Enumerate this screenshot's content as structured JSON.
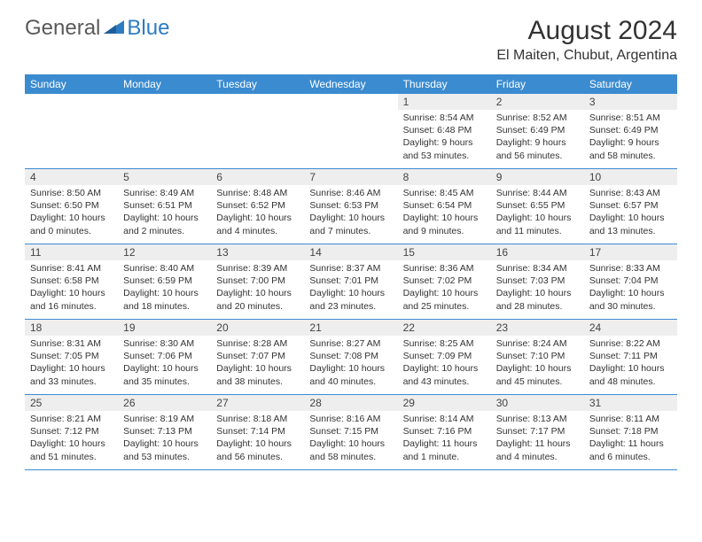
{
  "logo": {
    "general": "General",
    "blue": "Blue"
  },
  "title": "August 2024",
  "location": "El Maiten, Chubut, Argentina",
  "colors": {
    "header_bg": "#3b8bd0",
    "header_fg": "#ffffff",
    "daynum_bg": "#eeeeee",
    "rule": "#3b8bd0",
    "logo_gray": "#5a5a5a",
    "logo_blue": "#2d7cc1"
  },
  "weekdays": [
    "Sunday",
    "Monday",
    "Tuesday",
    "Wednesday",
    "Thursday",
    "Friday",
    "Saturday"
  ],
  "weeks": [
    [
      {
        "empty": true
      },
      {
        "empty": true
      },
      {
        "empty": true
      },
      {
        "empty": true
      },
      {
        "n": "1",
        "sunrise": "8:54 AM",
        "sunset": "6:48 PM",
        "daylight": "9 hours and 53 minutes."
      },
      {
        "n": "2",
        "sunrise": "8:52 AM",
        "sunset": "6:49 PM",
        "daylight": "9 hours and 56 minutes."
      },
      {
        "n": "3",
        "sunrise": "8:51 AM",
        "sunset": "6:49 PM",
        "daylight": "9 hours and 58 minutes."
      }
    ],
    [
      {
        "n": "4",
        "sunrise": "8:50 AM",
        "sunset": "6:50 PM",
        "daylight": "10 hours and 0 minutes."
      },
      {
        "n": "5",
        "sunrise": "8:49 AM",
        "sunset": "6:51 PM",
        "daylight": "10 hours and 2 minutes."
      },
      {
        "n": "6",
        "sunrise": "8:48 AM",
        "sunset": "6:52 PM",
        "daylight": "10 hours and 4 minutes."
      },
      {
        "n": "7",
        "sunrise": "8:46 AM",
        "sunset": "6:53 PM",
        "daylight": "10 hours and 7 minutes."
      },
      {
        "n": "8",
        "sunrise": "8:45 AM",
        "sunset": "6:54 PM",
        "daylight": "10 hours and 9 minutes."
      },
      {
        "n": "9",
        "sunrise": "8:44 AM",
        "sunset": "6:55 PM",
        "daylight": "10 hours and 11 minutes."
      },
      {
        "n": "10",
        "sunrise": "8:43 AM",
        "sunset": "6:57 PM",
        "daylight": "10 hours and 13 minutes."
      }
    ],
    [
      {
        "n": "11",
        "sunrise": "8:41 AM",
        "sunset": "6:58 PM",
        "daylight": "10 hours and 16 minutes."
      },
      {
        "n": "12",
        "sunrise": "8:40 AM",
        "sunset": "6:59 PM",
        "daylight": "10 hours and 18 minutes."
      },
      {
        "n": "13",
        "sunrise": "8:39 AM",
        "sunset": "7:00 PM",
        "daylight": "10 hours and 20 minutes."
      },
      {
        "n": "14",
        "sunrise": "8:37 AM",
        "sunset": "7:01 PM",
        "daylight": "10 hours and 23 minutes."
      },
      {
        "n": "15",
        "sunrise": "8:36 AM",
        "sunset": "7:02 PM",
        "daylight": "10 hours and 25 minutes."
      },
      {
        "n": "16",
        "sunrise": "8:34 AM",
        "sunset": "7:03 PM",
        "daylight": "10 hours and 28 minutes."
      },
      {
        "n": "17",
        "sunrise": "8:33 AM",
        "sunset": "7:04 PM",
        "daylight": "10 hours and 30 minutes."
      }
    ],
    [
      {
        "n": "18",
        "sunrise": "8:31 AM",
        "sunset": "7:05 PM",
        "daylight": "10 hours and 33 minutes."
      },
      {
        "n": "19",
        "sunrise": "8:30 AM",
        "sunset": "7:06 PM",
        "daylight": "10 hours and 35 minutes."
      },
      {
        "n": "20",
        "sunrise": "8:28 AM",
        "sunset": "7:07 PM",
        "daylight": "10 hours and 38 minutes."
      },
      {
        "n": "21",
        "sunrise": "8:27 AM",
        "sunset": "7:08 PM",
        "daylight": "10 hours and 40 minutes."
      },
      {
        "n": "22",
        "sunrise": "8:25 AM",
        "sunset": "7:09 PM",
        "daylight": "10 hours and 43 minutes."
      },
      {
        "n": "23",
        "sunrise": "8:24 AM",
        "sunset": "7:10 PM",
        "daylight": "10 hours and 45 minutes."
      },
      {
        "n": "24",
        "sunrise": "8:22 AM",
        "sunset": "7:11 PM",
        "daylight": "10 hours and 48 minutes."
      }
    ],
    [
      {
        "n": "25",
        "sunrise": "8:21 AM",
        "sunset": "7:12 PM",
        "daylight": "10 hours and 51 minutes."
      },
      {
        "n": "26",
        "sunrise": "8:19 AM",
        "sunset": "7:13 PM",
        "daylight": "10 hours and 53 minutes."
      },
      {
        "n": "27",
        "sunrise": "8:18 AM",
        "sunset": "7:14 PM",
        "daylight": "10 hours and 56 minutes."
      },
      {
        "n": "28",
        "sunrise": "8:16 AM",
        "sunset": "7:15 PM",
        "daylight": "10 hours and 58 minutes."
      },
      {
        "n": "29",
        "sunrise": "8:14 AM",
        "sunset": "7:16 PM",
        "daylight": "11 hours and 1 minute."
      },
      {
        "n": "30",
        "sunrise": "8:13 AM",
        "sunset": "7:17 PM",
        "daylight": "11 hours and 4 minutes."
      },
      {
        "n": "31",
        "sunrise": "8:11 AM",
        "sunset": "7:18 PM",
        "daylight": "11 hours and 6 minutes."
      }
    ]
  ],
  "labels": {
    "sunrise": "Sunrise:",
    "sunset": "Sunset:",
    "daylight": "Daylight:"
  }
}
